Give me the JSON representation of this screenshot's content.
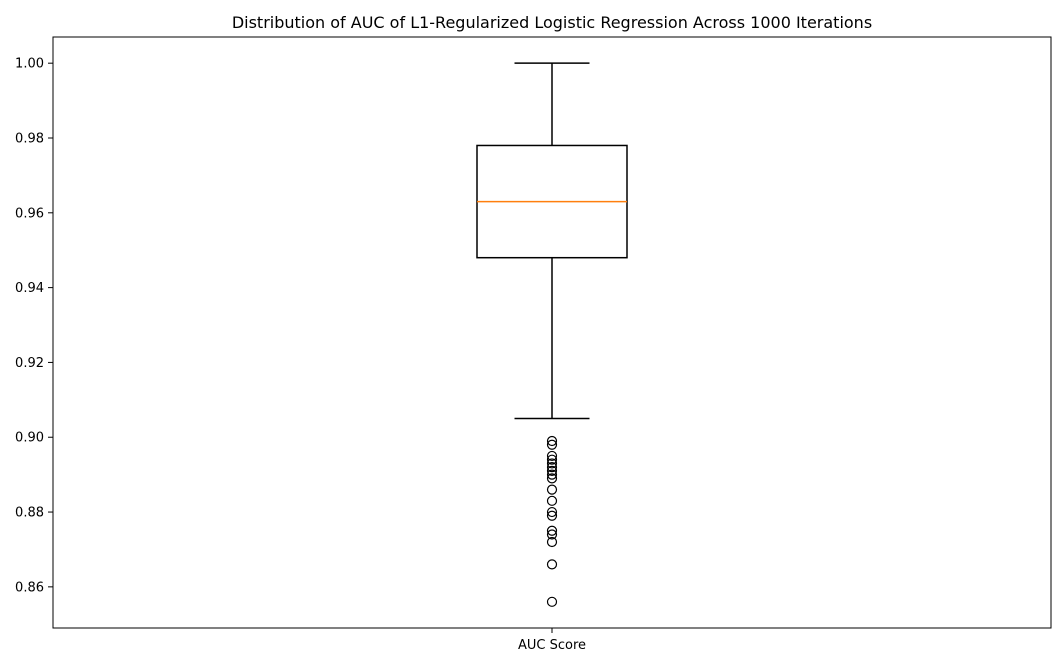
{
  "chart_data": {
    "type": "box",
    "title": "Distribution of AUC of L1-Regularized Logistic Regression Across 1000 Iterations",
    "xlabel": "",
    "ylabel": "",
    "categories": [
      "AUC Score"
    ],
    "ylim": [
      0.849,
      1.007
    ],
    "yticks": [
      0.86,
      0.88,
      0.9,
      0.92,
      0.94,
      0.96,
      0.98,
      1.0
    ],
    "ytick_labels": [
      "0.86",
      "0.88",
      "0.90",
      "0.92",
      "0.94",
      "0.96",
      "0.98",
      "1.00"
    ],
    "grid": false,
    "box": {
      "whisker_low": 0.905,
      "q1": 0.948,
      "median": 0.963,
      "q3": 0.978,
      "whisker_high": 1.0
    },
    "outliers": [
      0.899,
      0.898,
      0.895,
      0.894,
      0.893,
      0.892,
      0.891,
      0.89,
      0.889,
      0.886,
      0.883,
      0.88,
      0.879,
      0.875,
      0.874,
      0.872,
      0.866,
      0.856
    ],
    "colors": {
      "box": "#000000",
      "median": "#ff7f0e",
      "outlier_edge": "#000000"
    }
  }
}
